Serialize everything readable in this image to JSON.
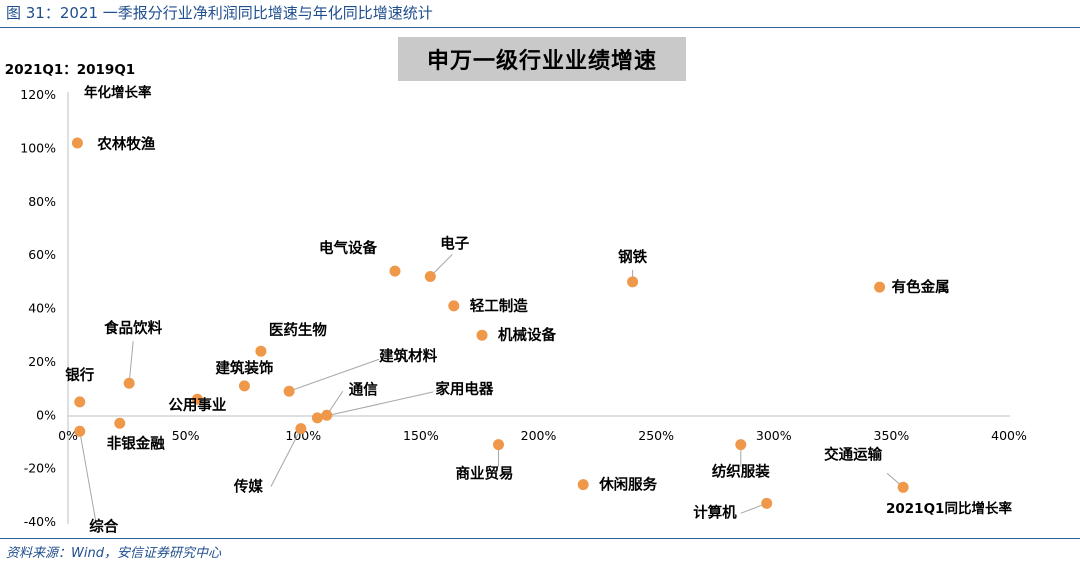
{
  "caption": "图 31：2021 一季报分行业净利润同比增速与年化同比增速统计",
  "source": "资料来源：Wind，安信证券研究中心",
  "chart_data": {
    "type": "scatter",
    "title": "申万一级行业业绩增速",
    "xlabel": "2021Q1同比增长率",
    "ylabel_line1": "2021Q1：2019Q1",
    "ylabel_line2": "年化增长率",
    "xlim": [
      0,
      4
    ],
    "ylim": [
      -0.4,
      1.2
    ],
    "x_ticks": [
      "0%",
      "50%",
      "100%",
      "150%",
      "200%",
      "250%",
      "300%",
      "350%",
      "400%"
    ],
    "y_ticks": [
      "120%",
      "100%",
      "80%",
      "60%",
      "40%",
      "20%",
      "0%",
      "-20%",
      "-40%"
    ],
    "marker_color": "#f0984a",
    "points": [
      {
        "name": "农林牧渔",
        "x": 0.04,
        "y": 1.02
      },
      {
        "name": "电气设备",
        "x": 1.39,
        "y": 0.54
      },
      {
        "name": "电子",
        "x": 1.54,
        "y": 0.52
      },
      {
        "name": "钢铁",
        "x": 2.4,
        "y": 0.5
      },
      {
        "name": "有色金属",
        "x": 3.45,
        "y": 0.48
      },
      {
        "name": "轻工制造",
        "x": 1.64,
        "y": 0.41
      },
      {
        "name": "机械设备",
        "x": 1.76,
        "y": 0.3
      },
      {
        "name": "医药生物",
        "x": 0.82,
        "y": 0.24
      },
      {
        "name": "食品饮料",
        "x": 0.26,
        "y": 0.12
      },
      {
        "name": "建筑装饰",
        "x": 0.75,
        "y": 0.11
      },
      {
        "name": "建筑材料",
        "x": 0.94,
        "y": 0.09
      },
      {
        "name": "公用事业",
        "x": 0.55,
        "y": 0.06
      },
      {
        "name": "银行",
        "x": 0.05,
        "y": 0.05
      },
      {
        "name": "通信",
        "x": 1.1,
        "y": 0.0
      },
      {
        "name": "家用电器",
        "x": 1.06,
        "y": -0.01
      },
      {
        "name": "非银金融",
        "x": 0.22,
        "y": -0.03
      },
      {
        "name": "综合",
        "x": 0.05,
        "y": -0.06
      },
      {
        "name": "传媒",
        "x": 0.99,
        "y": -0.05
      },
      {
        "name": "商业贸易",
        "x": 1.83,
        "y": -0.11
      },
      {
        "name": "纺织服装",
        "x": 2.86,
        "y": -0.11
      },
      {
        "name": "休闲服务",
        "x": 2.19,
        "y": -0.26
      },
      {
        "name": "交通运输",
        "x": 3.55,
        "y": -0.27
      },
      {
        "name": "计算机",
        "x": 2.97,
        "y": -0.33
      }
    ]
  }
}
